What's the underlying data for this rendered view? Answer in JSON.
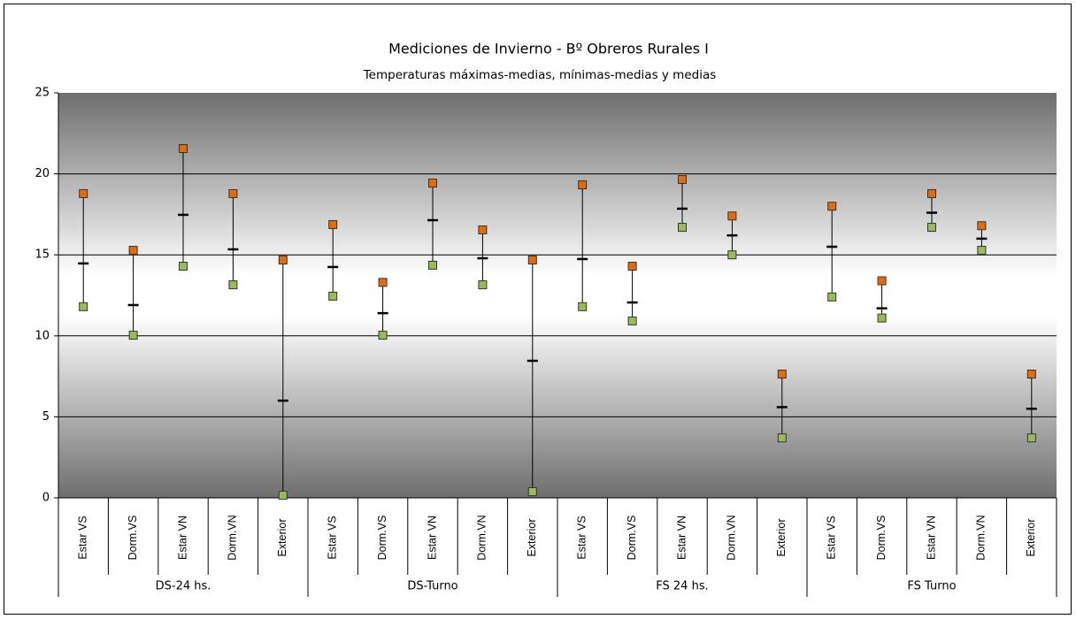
{
  "chart_data": {
    "type": "stock",
    "title": "Mediciones de Invierno - Bº Obreros Rurales I",
    "subtitle": "Temperaturas máximas-medias, mínimas-medias y medias",
    "categories": [
      "Estar VS",
      "Dorm.VS",
      "Estar VN",
      "Dorm.VN",
      "Exterior",
      "Estar VS",
      "Dorm.VS",
      "Estar VN",
      "Dorm.VN",
      "Exterior",
      "Estar VS",
      "Dorm.VS",
      "Estar VN",
      "Dorm.VN",
      "Exterior",
      "Estar VS",
      "Dorm.VS",
      "Estar VN",
      "Dorm.VN",
      "Exterior"
    ],
    "groups": [
      "DS-24 hs.",
      "DS-Turno",
      "FS 24 hs.",
      "FS Turno"
    ],
    "series": [
      {
        "color": "#e46c0a",
        "values": [
          18.78,
          15.28,
          21.56,
          18.78,
          14.68,
          16.87,
          13.3,
          19.43,
          16.54,
          14.68,
          19.32,
          14.3,
          19.65,
          17.4,
          7.64,
          18.0,
          13.4,
          18.78,
          16.8,
          7.64
        ]
      },
      {
        "color": "#000000",
        "values": [
          14.47,
          11.9,
          17.47,
          15.34,
          6.0,
          14.25,
          11.4,
          17.14,
          14.79,
          8.46,
          14.74,
          12.06,
          17.85,
          16.2,
          5.6,
          15.5,
          11.7,
          17.6,
          16.0,
          5.5
        ]
      },
      {
        "color": "#9bbb59",
        "values": [
          11.8,
          10.04,
          14.3,
          13.15,
          0.16,
          12.45,
          10.04,
          14.36,
          13.15,
          0.38,
          11.8,
          10.92,
          16.7,
          15.0,
          3.7,
          12.4,
          11.1,
          16.7,
          15.28,
          3.7
        ]
      }
    ],
    "ylim": [
      0,
      25
    ],
    "yticks": [
      0,
      5,
      10,
      15,
      20,
      25
    ],
    "grid": true
  }
}
